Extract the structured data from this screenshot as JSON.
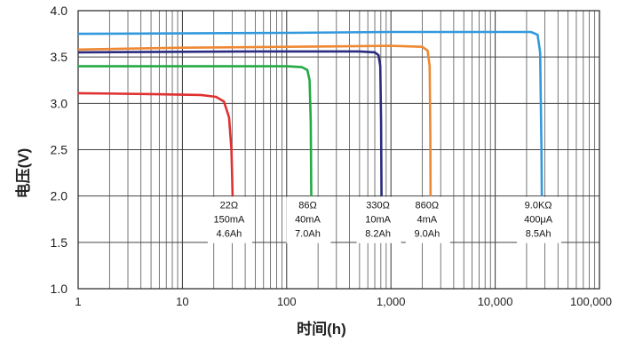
{
  "chart_data": {
    "type": "line",
    "xscale": "log",
    "xlabel": "时间(h)",
    "ylabel": "电压(V)",
    "xlim": [
      1,
      100000
    ],
    "ylim": [
      1.0,
      4.0
    ],
    "grid": true,
    "x_tick_labels": [
      "1",
      "10",
      "100",
      "1,000",
      "10,000",
      "100,000"
    ],
    "y_tick_labels": [
      "1.0",
      "1.5",
      "2.0",
      "2.5",
      "3.0",
      "3.5",
      "4.0"
    ],
    "series": [
      {
        "color": "#e03030",
        "x": [
          1,
          5,
          15,
          21,
          25,
          28,
          29.5,
          30,
          30.3
        ],
        "y": [
          3.11,
          3.1,
          3.09,
          3.07,
          3.02,
          2.85,
          2.5,
          2.2,
          2.0
        ],
        "annotation": [
          "22Ω",
          "150mA",
          "4.6Ah"
        ]
      },
      {
        "color": "#22aa44",
        "x": [
          1,
          20,
          100,
          140,
          158,
          166,
          170,
          172
        ],
        "y": [
          3.4,
          3.4,
          3.4,
          3.39,
          3.36,
          3.25,
          2.8,
          2.0
        ],
        "annotation": [
          "86Ω",
          "40mA",
          "7.0Ah"
        ]
      },
      {
        "color": "#2a2a80",
        "x": [
          1,
          50,
          500,
          700,
          760,
          790,
          805,
          812
        ],
        "y": [
          3.55,
          3.56,
          3.56,
          3.55,
          3.52,
          3.4,
          2.8,
          2.0
        ],
        "annotation": [
          "330Ω",
          "10mA",
          "8.2Ah"
        ]
      },
      {
        "color": "#ee8833",
        "x": [
          1,
          10,
          100,
          1000,
          2000,
          2250,
          2350,
          2390,
          2400
        ],
        "y": [
          3.58,
          3.6,
          3.61,
          3.62,
          3.61,
          3.57,
          3.4,
          2.6,
          2.0
        ],
        "annotation": [
          "860Ω",
          "4mA",
          "9.0Ah"
        ]
      },
      {
        "color": "#3399dd",
        "x": [
          1,
          100,
          1000,
          10000,
          22000,
          25500,
          27000,
          27800,
          28000
        ],
        "y": [
          3.75,
          3.76,
          3.77,
          3.77,
          3.77,
          3.74,
          3.55,
          2.5,
          2.0
        ],
        "annotation": [
          "9.0KΩ",
          "400μA",
          "8.5Ah"
        ]
      }
    ]
  }
}
